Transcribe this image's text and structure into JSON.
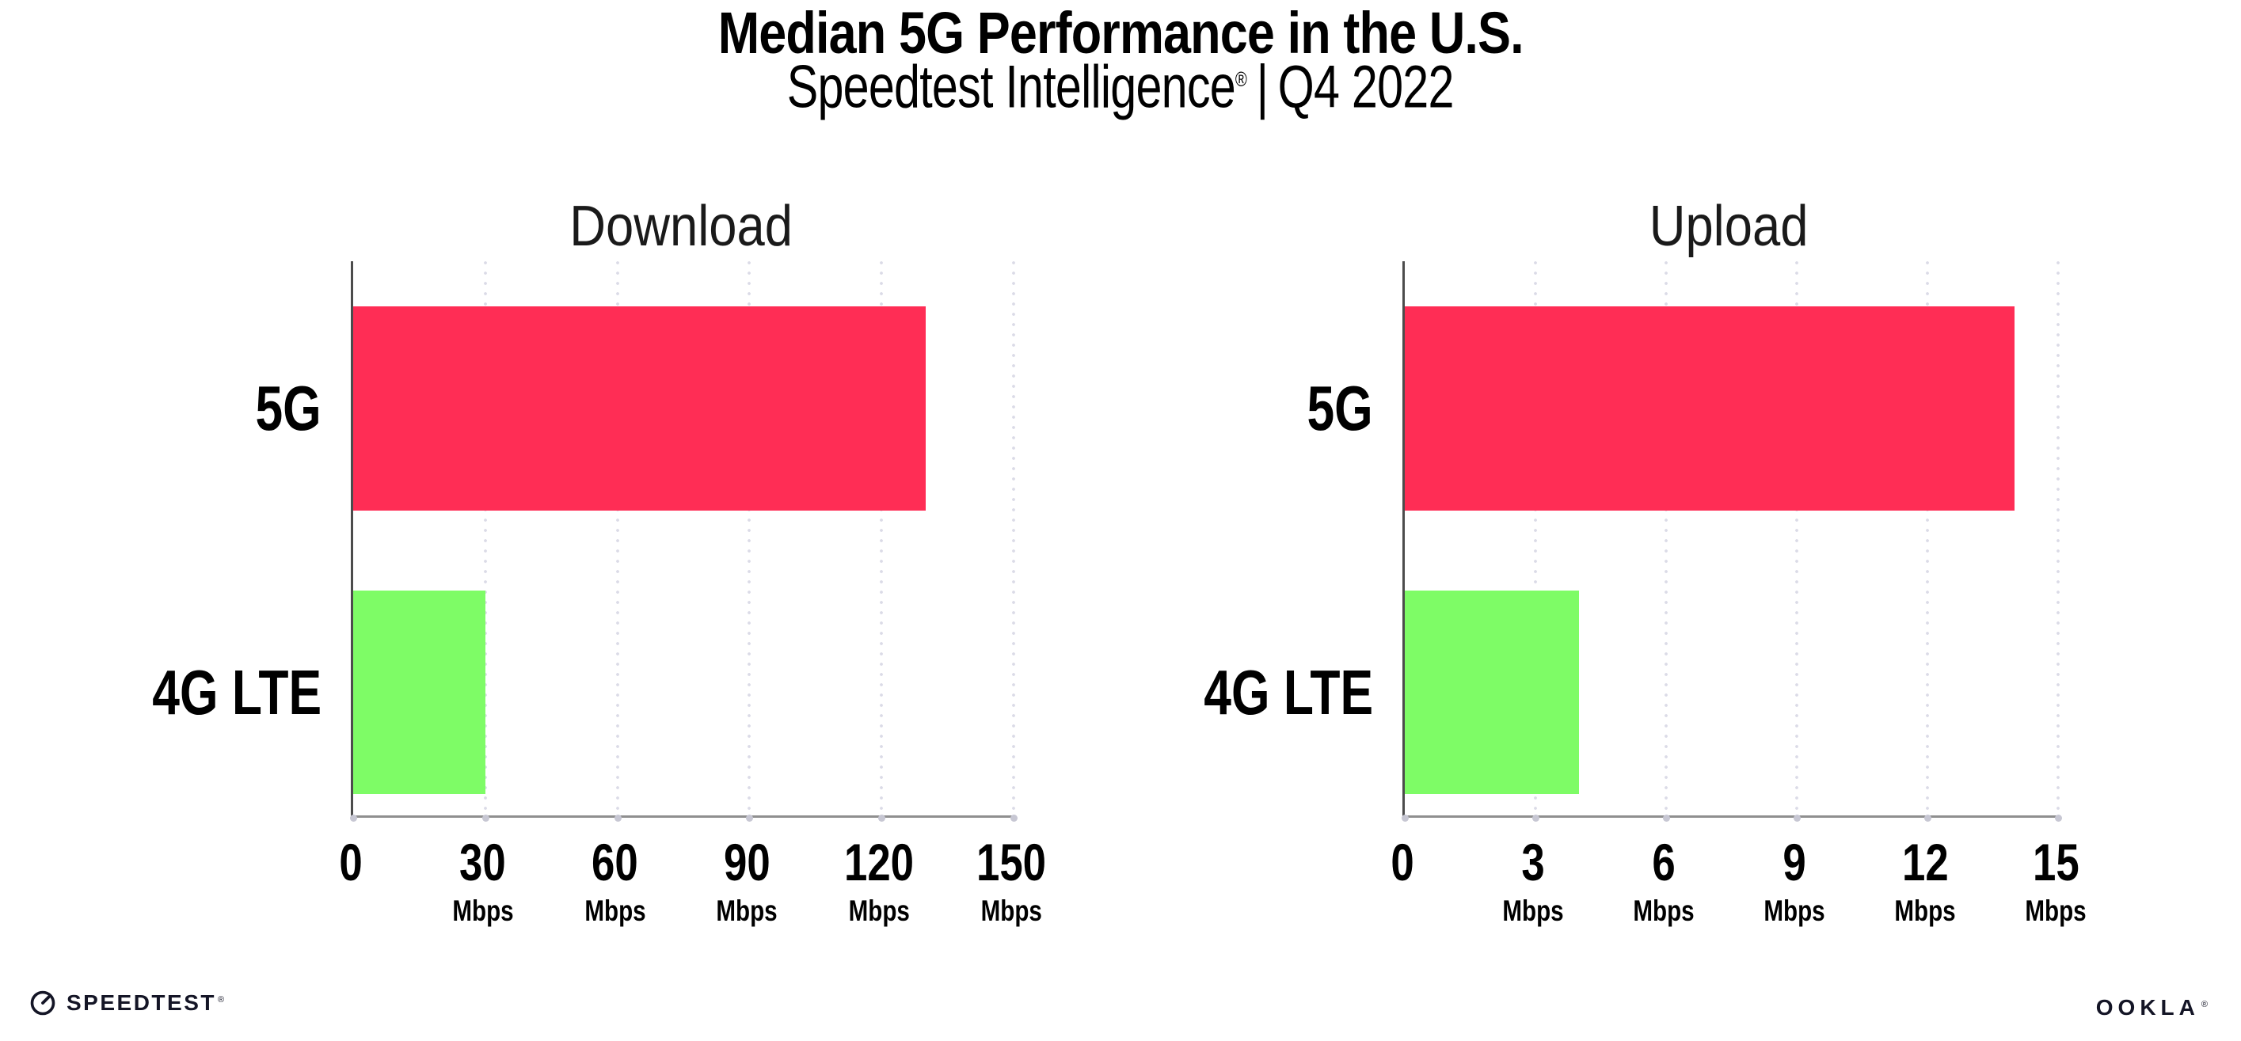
{
  "title": "Median 5G Performance in the U.S.",
  "subtitle": {
    "brand": "Speedtest Intelligence",
    "registered_mark": "®",
    "separator": "|",
    "period": "Q4 2022"
  },
  "footer": {
    "speedtest_wordmark": "SPEEDTEST",
    "speedtest_mark": "®",
    "ookla_wordmark": "OOKLA",
    "ookla_mark": "®"
  },
  "colors": {
    "bar_5g": "#ff2d55",
    "bar_4g_lte": "#7efc66",
    "bars": [
      "#ff2d55",
      "#7efc66"
    ],
    "gridline_dot": "#dbdbe7",
    "x_axis_line": "#8f8f8f",
    "y_axis_line": "#4c4c4c",
    "tick_dot": "#c7c7d3",
    "text": "#000000",
    "logo": "#141526"
  },
  "chart_data": [
    {
      "type": "bar",
      "orientation": "horizontal",
      "title": "Download",
      "categories": [
        "5G",
        "4G LTE"
      ],
      "values": [
        130,
        30
      ],
      "unit": "Mbps",
      "xlim": [
        0,
        150
      ],
      "xticks": [
        0,
        30,
        60,
        90,
        120,
        150
      ],
      "grid": "vertical-dotted",
      "legend": "none"
    },
    {
      "type": "bar",
      "orientation": "horizontal",
      "title": "Upload",
      "categories": [
        "5G",
        "4G LTE"
      ],
      "values": [
        14,
        4
      ],
      "unit": "Mbps",
      "xlim": [
        0,
        15
      ],
      "xticks": [
        0,
        3,
        6,
        9,
        12,
        15
      ],
      "grid": "vertical-dotted",
      "legend": "none"
    }
  ]
}
